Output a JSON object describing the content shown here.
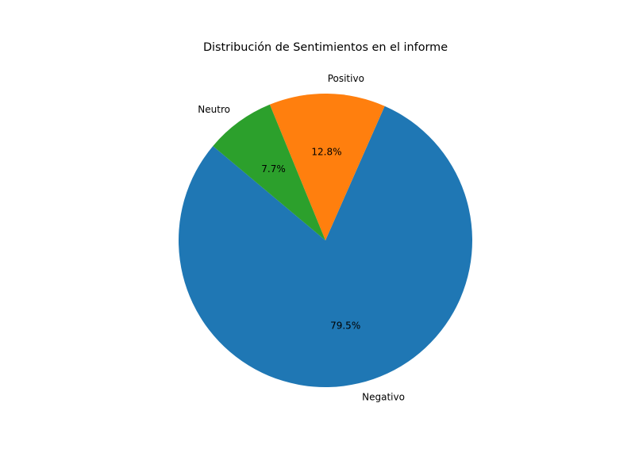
{
  "chart_data": {
    "type": "pie",
    "title": "Distribución de Sentimientos en el informe",
    "slices": [
      {
        "label": "Negativo",
        "value": 79.5,
        "pct_label": "79.5%",
        "color": "#1f77b4"
      },
      {
        "label": "Positivo",
        "value": 12.8,
        "pct_label": "12.8%",
        "color": "#ff7f0e"
      },
      {
        "label": "Neutro",
        "value": 7.7,
        "pct_label": "7.7%",
        "color": "#2ca02c"
      }
    ],
    "start_angle_deg": 140,
    "direction": "counterclockwise"
  }
}
